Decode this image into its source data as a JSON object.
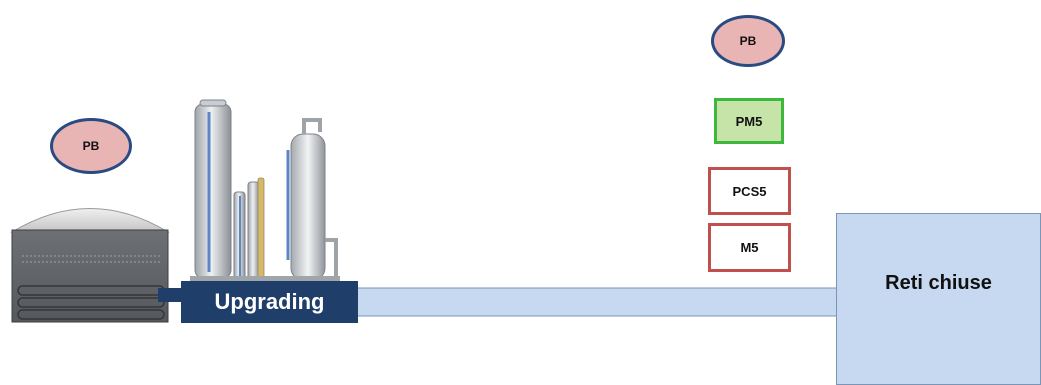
{
  "colors": {
    "pb_fill": "#e8b4b4",
    "pb_border": "#2a4a82",
    "pm5_fill": "#c6e3a8",
    "pm5_border": "#3cb83c",
    "red_border": "#c0504d",
    "upgrading_fill": "#203e6a",
    "pipe_fill": "#c6d9f0",
    "network_fill": "#c6d9f0"
  },
  "nodes": {
    "pb_left": {
      "label": "PB"
    },
    "pb_top": {
      "label": "PB"
    },
    "pm5": {
      "label": "PM5"
    },
    "pcs5": {
      "label": "PCS5"
    },
    "m5": {
      "label": "M5"
    },
    "upgrading": {
      "label": "Upgrading"
    },
    "reti_chiuse": {
      "label": "Reti chiuse"
    }
  },
  "icons": {
    "digester": "biogas-digester-icon",
    "plant": "upgrading-plant-icon"
  }
}
